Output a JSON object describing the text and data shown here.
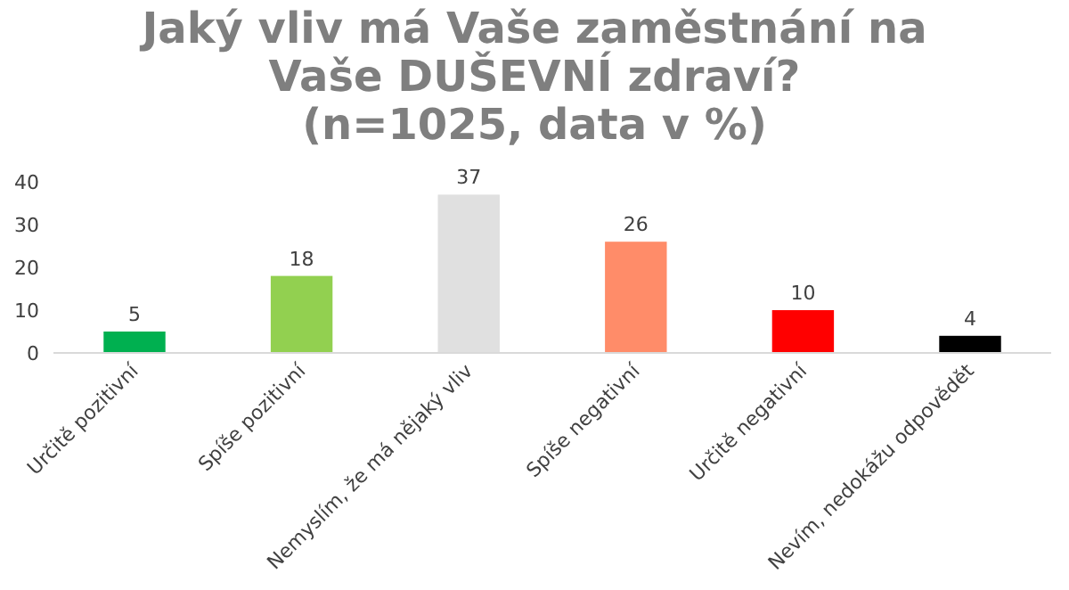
{
  "chart_data": {
    "type": "bar",
    "title": "Jaký vliv má Vaše zaměstnání na\nVaše DUŠEVNÍ zdraví?\n(n=1025, data v %)",
    "categories": [
      "Určitě pozitivní",
      "Spíše pozitivní",
      "Nemyslím, že má nějaký vliv",
      "Spíše negativní",
      "Určitě negativní",
      "Nevím, nedokážu odpovědět"
    ],
    "values": [
      5,
      18,
      37,
      26,
      10,
      4
    ],
    "colors": [
      "#00b050",
      "#92d050",
      "#e0e0e0",
      "#ff8c69",
      "#ff0000",
      "#000000"
    ],
    "ylim": [
      0,
      40
    ],
    "yticks": [
      0,
      10,
      20,
      30,
      40
    ],
    "data_labels": true,
    "grid": false
  }
}
